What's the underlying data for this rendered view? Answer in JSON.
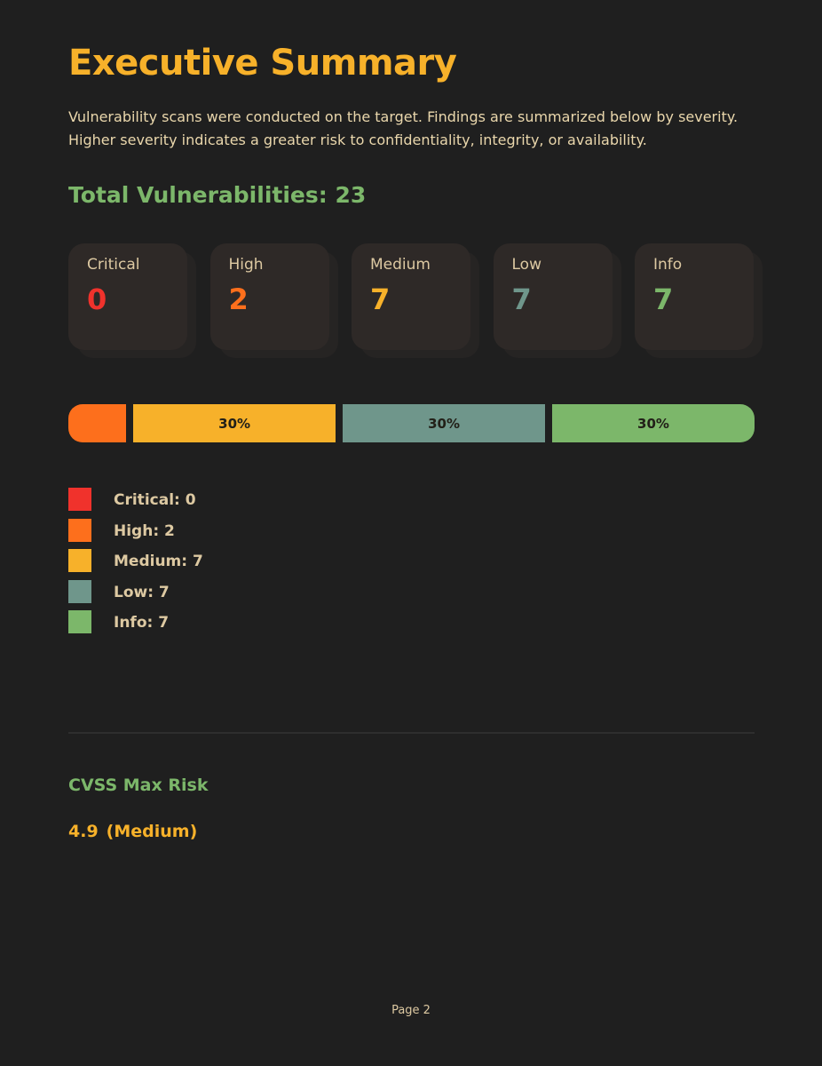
{
  "title": "Executive Summary",
  "intro": "Vulnerability scans were conducted on the target. Findings are summarized below by severity. Higher severity indicates a greater risk to confidentiality, integrity, or availability.",
  "total_label": "Total Vulnerabilities: 23",
  "cards": [
    {
      "label": "Critical",
      "value": "0",
      "color": "#f0322c"
    },
    {
      "label": "High",
      "value": "2",
      "color": "#fd6f1c"
    },
    {
      "label": "Medium",
      "value": "7",
      "color": "#f7b12a"
    },
    {
      "label": "Low",
      "value": "7",
      "color": "#6f968b"
    },
    {
      "label": "Info",
      "value": "7",
      "color": "#7cb76a"
    }
  ],
  "chart_data": {
    "type": "bar",
    "orientation": "horizontal-stacked",
    "categories": [
      "High",
      "Medium",
      "Low",
      "Info"
    ],
    "values": [
      2,
      7,
      7,
      7
    ],
    "percent_labels": [
      "",
      "30%",
      "30%",
      "30%"
    ],
    "colors": [
      "#fd6f1c",
      "#f7b12a",
      "#6f968b",
      "#7cb76a"
    ]
  },
  "legend": [
    {
      "text": "Critical: 0",
      "color": "#f0322c"
    },
    {
      "text": "High: 2",
      "color": "#fd6f1c"
    },
    {
      "text": "Medium: 7",
      "color": "#f7b12a"
    },
    {
      "text": "Low: 7",
      "color": "#6f968b"
    },
    {
      "text": "Info: 7",
      "color": "#7cb76a"
    }
  ],
  "cvss": {
    "label": "CVSS Max Risk",
    "score": "4.9",
    "rating": "(Medium)"
  },
  "footer": "Page 2"
}
